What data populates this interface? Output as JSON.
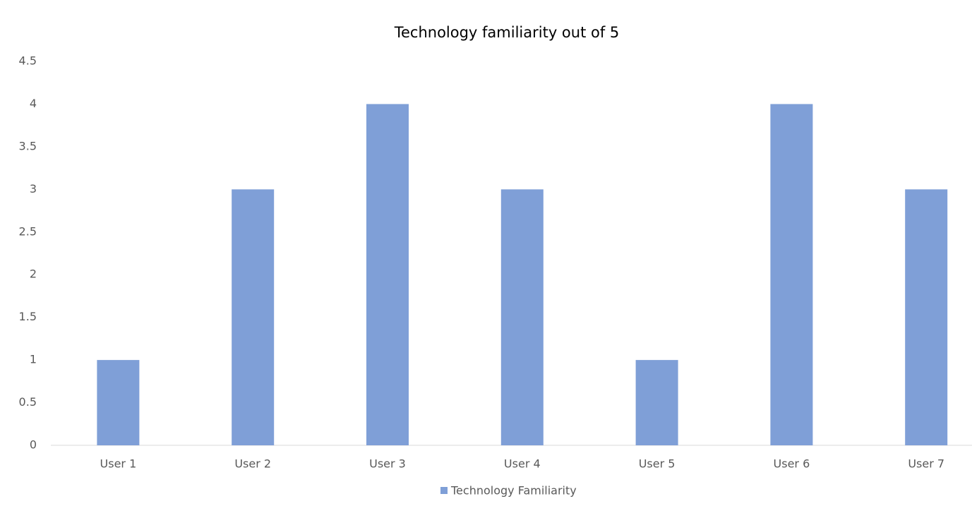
{
  "chart_data": {
    "type": "bar",
    "title": "Technology familiarity out of 5",
    "categories": [
      "User 1",
      "User 2",
      "User 3",
      "User 4",
      "User 5",
      "User 6",
      "User 7"
    ],
    "series": [
      {
        "name": "Technology Familiarity",
        "color": "#7f9fd7",
        "values": [
          1,
          3,
          4,
          3,
          1,
          4,
          3
        ]
      }
    ],
    "ylim": [
      0,
      4.5
    ],
    "yticks": [
      0,
      0.5,
      1,
      1.5,
      2,
      2.5,
      3,
      3.5,
      4,
      4.5
    ],
    "grid": false,
    "legend": "bottom"
  }
}
